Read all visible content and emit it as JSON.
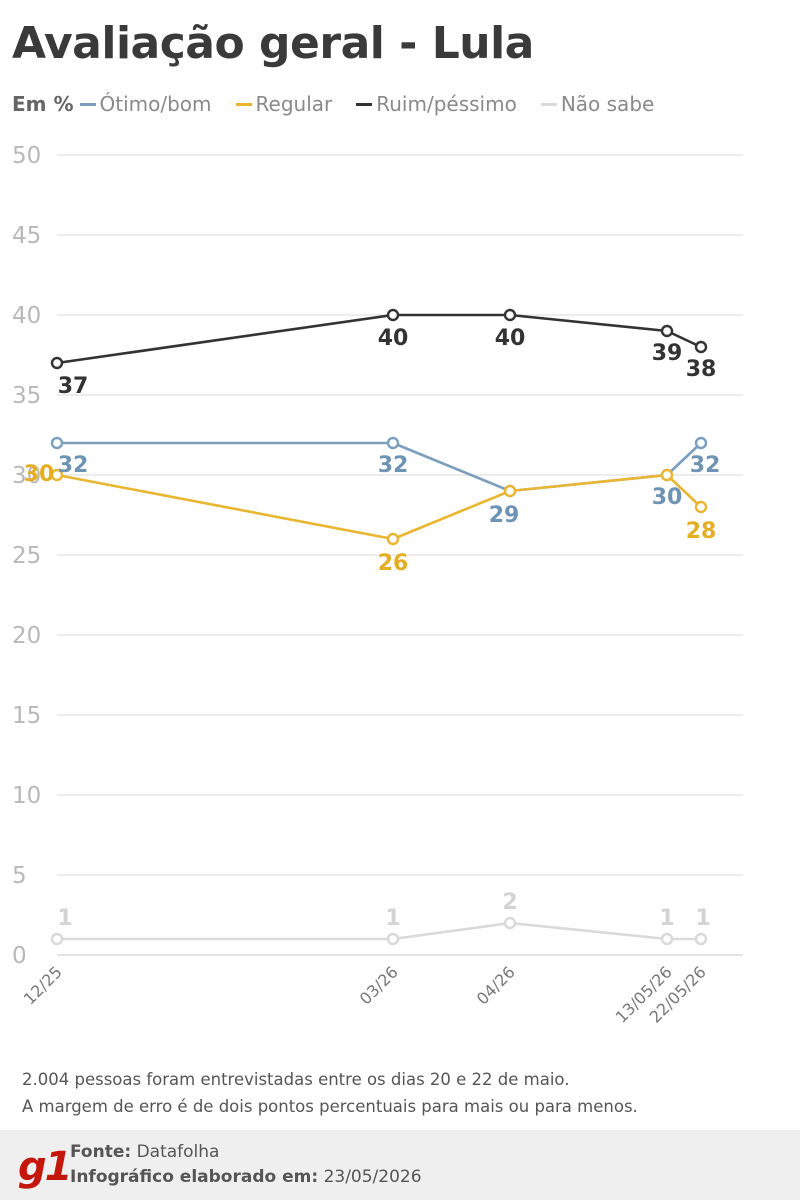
{
  "title": "Avaliação geral - Lula",
  "legend": {
    "unit_label": "Em %",
    "items": [
      {
        "name": "Ótimo/bom",
        "color": "#7b9fbd"
      },
      {
        "name": "Regular",
        "color": "#e8b630"
      },
      {
        "name": "Ruim/péssimo",
        "color": "#333333"
      },
      {
        "name": "Não sabe",
        "color": "#d9d9d9"
      }
    ]
  },
  "chart_data": {
    "type": "line",
    "x": [
      "12/25",
      "03/26",
      "04/26",
      "13/05/26",
      "22/05/26"
    ],
    "series": [
      {
        "name": "Ótimo/bom",
        "color": "#7b9fbd",
        "values": [
          32,
          32,
          29,
          30,
          32
        ]
      },
      {
        "name": "Regular",
        "color": "#e8b630",
        "values": [
          30,
          26,
          29,
          30,
          28
        ]
      },
      {
        "name": "Ruim/péssimo",
        "color": "#333333",
        "values": [
          37,
          40,
          40,
          39,
          38
        ]
      },
      {
        "name": "Não sabe",
        "color": "#d9d9d9",
        "values": [
          1,
          1,
          2,
          1,
          1
        ]
      }
    ],
    "ylim": [
      0,
      50
    ],
    "yticks": [
      0,
      5,
      10,
      15,
      20,
      25,
      30,
      35,
      40,
      45,
      50
    ],
    "grid": true,
    "legend_position": "top"
  },
  "notes": {
    "line1": "2.004 pessoas foram entrevistadas entre os dias 20 e 22 de maio.",
    "line2": "A margem de erro é de dois pontos percentuais para mais ou para menos."
  },
  "footer": {
    "logo": "g1",
    "source_label": "Fonte:",
    "source_value": "Datafolha",
    "date_label": "Infográfico elaborado em:",
    "date_value": "23/05/2026"
  }
}
